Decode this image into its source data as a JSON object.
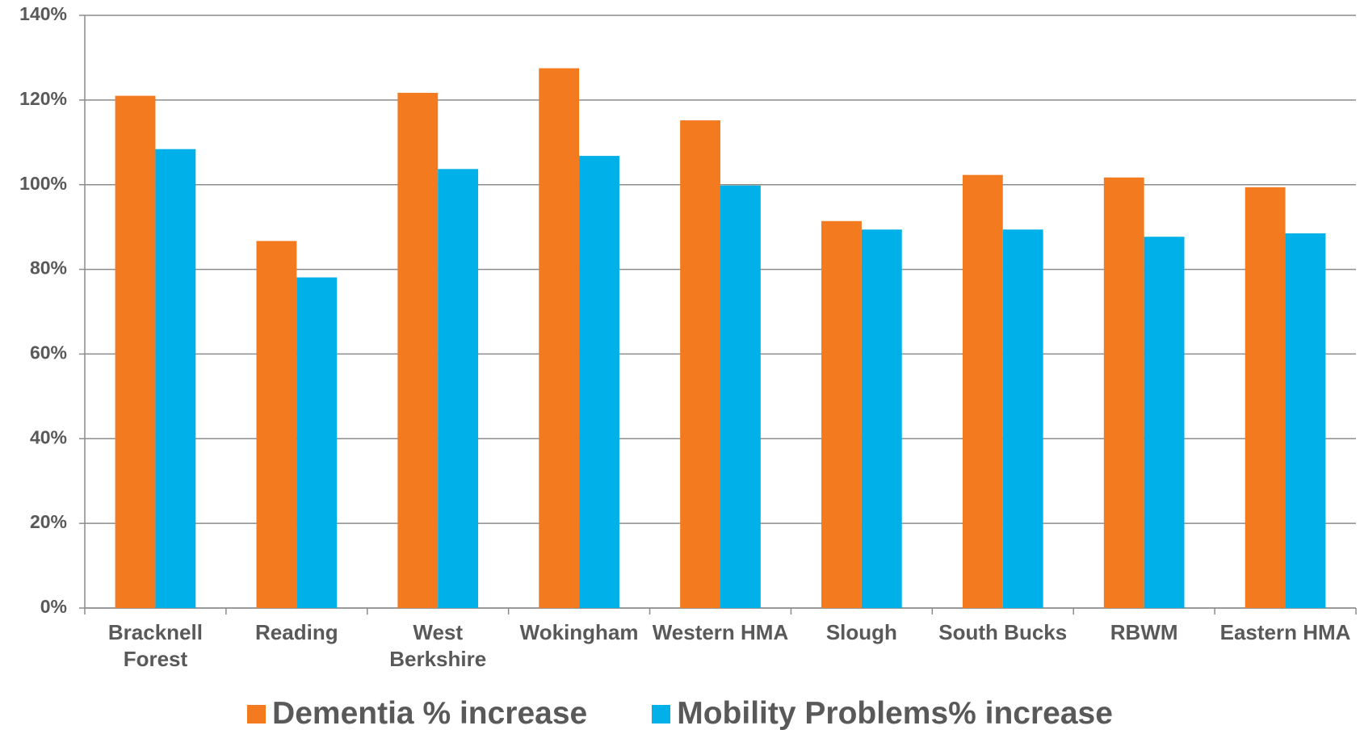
{
  "chart_data": {
    "type": "bar",
    "categories": [
      "Bracknell Forest",
      "Reading",
      "West Berkshire",
      "Wokingham",
      "Western HMA",
      "Slough",
      "South Bucks",
      "RBWM",
      "Eastern HMA"
    ],
    "series": [
      {
        "name": "Dementia % increase",
        "color": "#f47a20",
        "values": [
          121,
          86.7,
          121.7,
          127.5,
          115.2,
          91.4,
          102.3,
          101.7,
          99.4
        ]
      },
      {
        "name": "Mobility Problems% increase",
        "color": "#00b0e8",
        "values": [
          108.4,
          78.1,
          103.7,
          106.8,
          99.8,
          89.4,
          89.4,
          87.7,
          88.5
        ]
      }
    ],
    "ylim": [
      0,
      140
    ],
    "yticks": [
      {
        "value": 0,
        "label": "0%"
      },
      {
        "value": 20,
        "label": "20%"
      },
      {
        "value": 40,
        "label": "40%"
      },
      {
        "value": 60,
        "label": "60%"
      },
      {
        "value": 80,
        "label": "80%"
      },
      {
        "value": 100,
        "label": "100%"
      },
      {
        "value": 120,
        "label": "120%"
      },
      {
        "value": 140,
        "label": "140%"
      }
    ],
    "grid": true
  }
}
